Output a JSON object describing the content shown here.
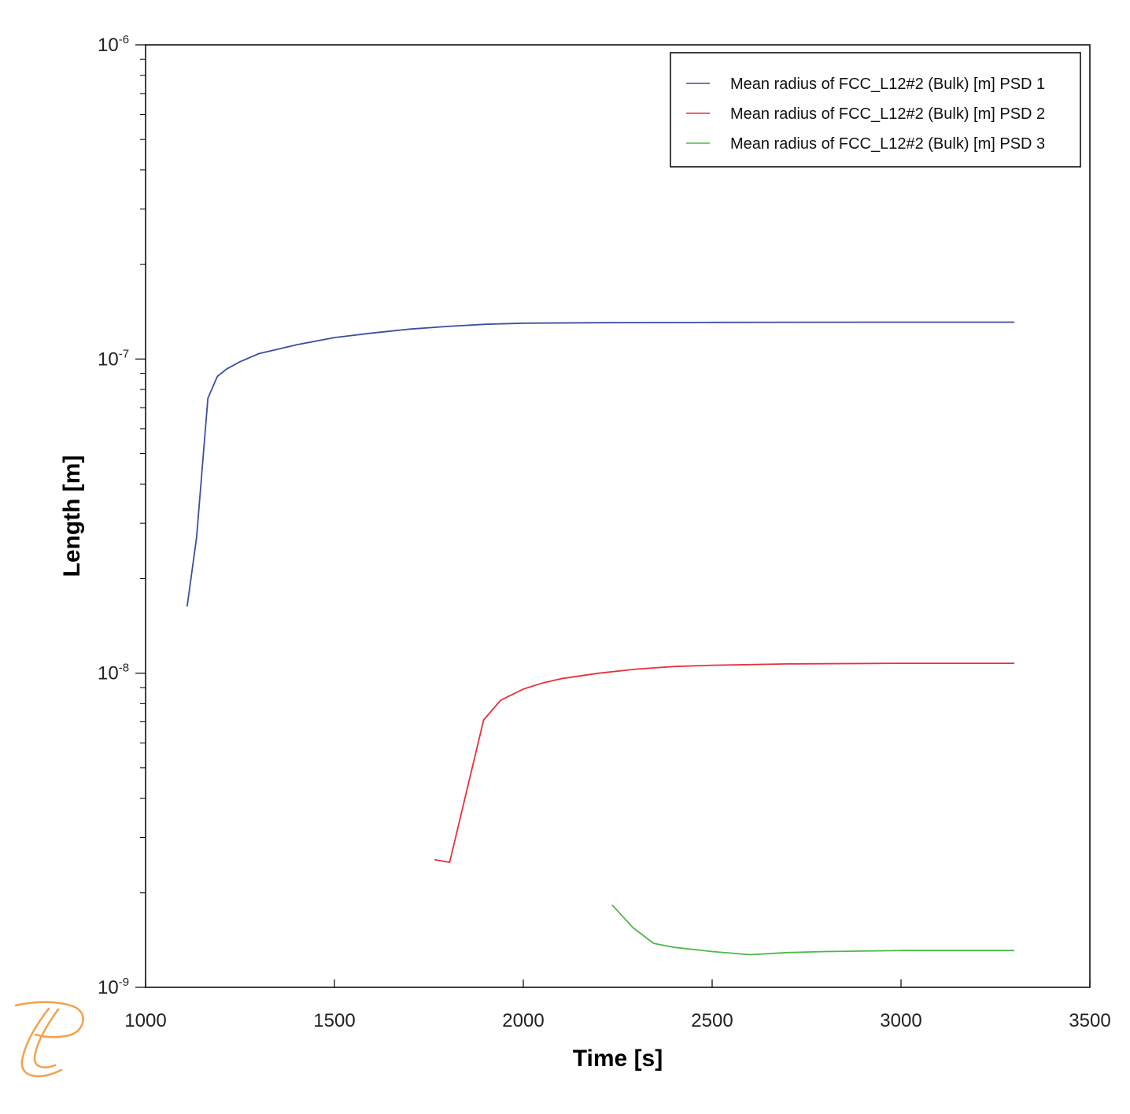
{
  "chart_data": {
    "type": "line",
    "xlabel": "Time [s]",
    "ylabel": "Length [m]",
    "xlim": [
      1000,
      3500
    ],
    "ylim": [
      1e-09,
      1e-06
    ],
    "yscale": "log",
    "grid": false,
    "legend_position": "top-right",
    "x_ticks": [
      "1000",
      "1500",
      "2000",
      "2500",
      "3000",
      "3500"
    ],
    "y_ticks": [
      {
        "base": "10",
        "exp": "-9"
      },
      {
        "base": "10",
        "exp": "-8"
      },
      {
        "base": "10",
        "exp": "-7"
      },
      {
        "base": "10",
        "exp": "-6"
      }
    ],
    "series": [
      {
        "name": "Mean radius of FCC_L12#2 (Bulk) [m] PSD 1",
        "color": "#3b4fa0",
        "x": [
          1110,
          1135,
          1165,
          1190,
          1215,
          1250,
          1300,
          1400,
          1500,
          1600,
          1700,
          1800,
          1900,
          2000,
          2200,
          2500,
          3000,
          3300
        ],
        "y": [
          1.63e-08,
          2.7e-08,
          7.5e-08,
          8.8e-08,
          9.3e-08,
          9.8e-08,
          1.04e-07,
          1.11e-07,
          1.17e-07,
          1.21e-07,
          1.245e-07,
          1.27e-07,
          1.29e-07,
          1.3e-07,
          1.305e-07,
          1.308e-07,
          1.31e-07,
          1.31e-07
        ]
      },
      {
        "name": "Mean radius of FCC_L12#2 (Bulk) [m] PSD 2",
        "color": "#e8303c",
        "x": [
          1765,
          1805,
          1895,
          1940,
          2000,
          2050,
          2100,
          2200,
          2300,
          2400,
          2500,
          2700,
          3000,
          3300
        ],
        "y": [
          2.55e-09,
          2.5e-09,
          7.1e-09,
          8.2e-09,
          8.9e-09,
          9.3e-09,
          9.6e-09,
          1e-08,
          1.03e-08,
          1.05e-08,
          1.06e-08,
          1.07e-08,
          1.075e-08,
          1.075e-08
        ]
      },
      {
        "name": "Mean radius of FCC_L12#2 (Bulk) [m] PSD 3",
        "color": "#4cb848",
        "x": [
          2235,
          2290,
          2345,
          2400,
          2500,
          2600,
          2700,
          2800,
          3000,
          3300
        ],
        "y": [
          1.83e-09,
          1.55e-09,
          1.38e-09,
          1.34e-09,
          1.3e-09,
          1.27e-09,
          1.29e-09,
          1.3e-09,
          1.31e-09,
          1.31e-09
        ]
      }
    ]
  },
  "logo": {
    "name": "thermo-calc-logo",
    "color": "#f5a04a"
  }
}
